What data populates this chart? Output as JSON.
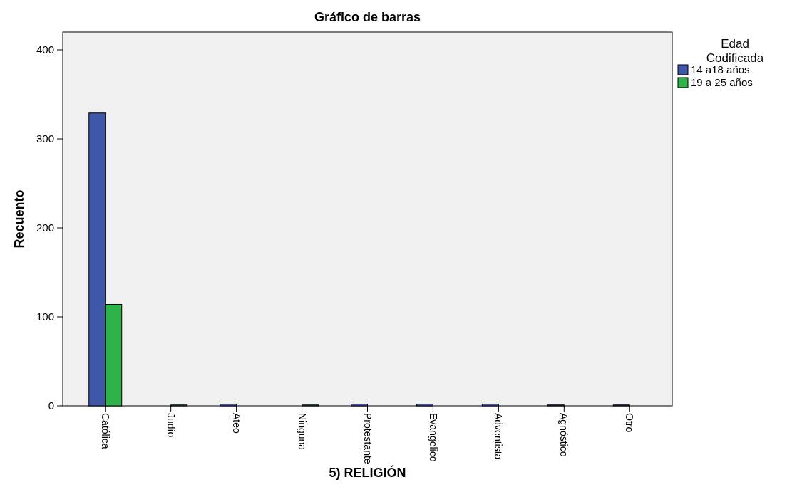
{
  "chart_data": {
    "type": "bar",
    "title": "Gráfico de barras",
    "xlabel": "5) RELIGIÓN",
    "ylabel": "Recuento",
    "legend_title": "Edad Codificada",
    "legend": "top right",
    "categories": [
      "Católica",
      "Judío",
      "Ateo",
      "Ninguna",
      "Protestante",
      "Evangelico",
      "Adventista",
      "Agnóstico",
      "Otro"
    ],
    "series": [
      {
        "name": "14 a18 años",
        "color": "#3f57a8",
        "values": [
          329,
          0,
          2,
          0,
          2,
          2,
          2,
          1,
          1
        ]
      },
      {
        "name": "19 a 25 años",
        "color": "#2db34a",
        "values": [
          114,
          1,
          0,
          1,
          0,
          0,
          0,
          0,
          0
        ]
      }
    ],
    "ylim": [
      0,
      420
    ],
    "yticks": [
      0,
      100,
      200,
      300,
      400
    ],
    "grid": false
  }
}
